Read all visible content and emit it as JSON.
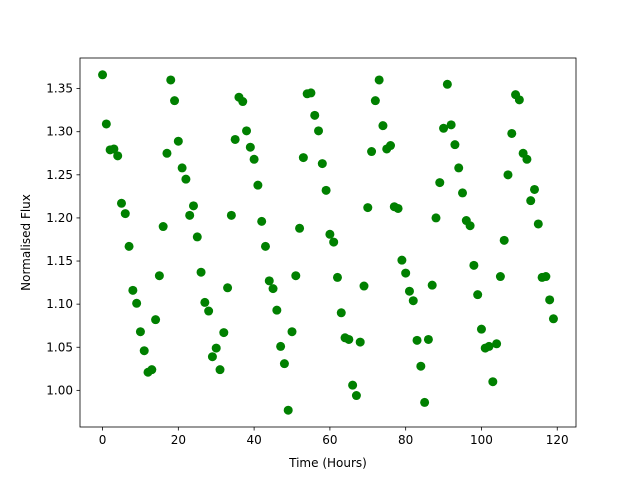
{
  "chart_data": {
    "type": "scatter",
    "xlabel": "Time (Hours)",
    "ylabel": "Normalised Flux",
    "color": "#008000",
    "x": [
      0,
      1,
      2,
      3,
      4,
      5,
      6,
      7,
      8,
      9,
      10,
      11,
      12,
      13,
      14,
      15,
      16,
      17,
      18,
      19,
      20,
      21,
      22,
      23,
      24,
      25,
      26,
      27,
      28,
      29,
      30,
      31,
      32,
      33,
      34,
      35,
      36,
      37,
      38,
      39,
      40,
      41,
      42,
      43,
      44,
      45,
      46,
      47,
      48,
      49,
      50,
      51,
      52,
      53,
      54,
      55,
      56,
      57,
      58,
      59,
      60,
      61,
      62,
      63,
      64,
      65,
      66,
      67,
      68,
      69,
      70,
      71,
      72,
      73,
      74,
      75,
      76,
      77,
      78,
      79,
      80,
      81,
      82,
      83,
      84,
      85,
      86,
      87,
      88,
      89,
      90,
      91,
      92,
      93,
      94,
      95,
      96,
      97,
      98,
      99,
      100,
      101,
      102,
      103,
      104,
      105,
      106,
      107,
      108,
      109,
      110,
      111,
      112,
      113,
      114,
      115,
      116,
      117,
      118,
      119
    ],
    "values": [
      1.366,
      1.309,
      1.279,
      1.28,
      1.272,
      1.217,
      1.205,
      1.167,
      1.116,
      1.101,
      1.068,
      1.046,
      1.021,
      1.024,
      1.082,
      1.133,
      1.19,
      1.275,
      1.36,
      1.336,
      1.289,
      1.258,
      1.245,
      1.203,
      1.214,
      1.178,
      1.137,
      1.102,
      1.092,
      1.039,
      1.049,
      1.024,
      1.067,
      1.119,
      1.203,
      1.291,
      1.34,
      1.335,
      1.301,
      1.282,
      1.268,
      1.238,
      1.196,
      1.167,
      1.127,
      1.118,
      1.093,
      1.051,
      1.031,
      0.977,
      1.068,
      1.133,
      1.188,
      1.27,
      1.344,
      1.345,
      1.319,
      1.301,
      1.263,
      1.232,
      1.181,
      1.172,
      1.131,
      1.09,
      1.061,
      1.059,
      1.006,
      0.994,
      1.056,
      1.121,
      1.212,
      1.277,
      1.336,
      1.36,
      1.307,
      1.28,
      1.284,
      1.213,
      1.211,
      1.151,
      1.136,
      1.115,
      1.104,
      1.058,
      1.028,
      0.986,
      1.059,
      1.122,
      1.2,
      1.241,
      1.304,
      1.355,
      1.308,
      1.285,
      1.258,
      1.229,
      1.197,
      1.191,
      1.145,
      1.111,
      1.071,
      1.049,
      1.051,
      1.01,
      1.054,
      1.132,
      1.174,
      1.25,
      1.298,
      1.343,
      1.337,
      1.275,
      1.268,
      1.22,
      1.233,
      1.193,
      1.131,
      1.132,
      1.105,
      1.083
    ],
    "xlim": [
      -5.95,
      124.95
    ],
    "xticks": [
      0,
      20,
      40,
      60,
      80,
      100,
      120
    ],
    "ylim": [
      0.9575,
      1.3855
    ],
    "yticks": [
      {
        "value": 1,
        "label": "1.00"
      },
      1.05,
      {
        "value": 1.1,
        "label": "1.10"
      },
      1.15,
      {
        "value": 1.2,
        "label": "1.20"
      },
      1.25,
      {
        "value": 1.3,
        "label": "1.30"
      },
      1.35
    ]
  }
}
